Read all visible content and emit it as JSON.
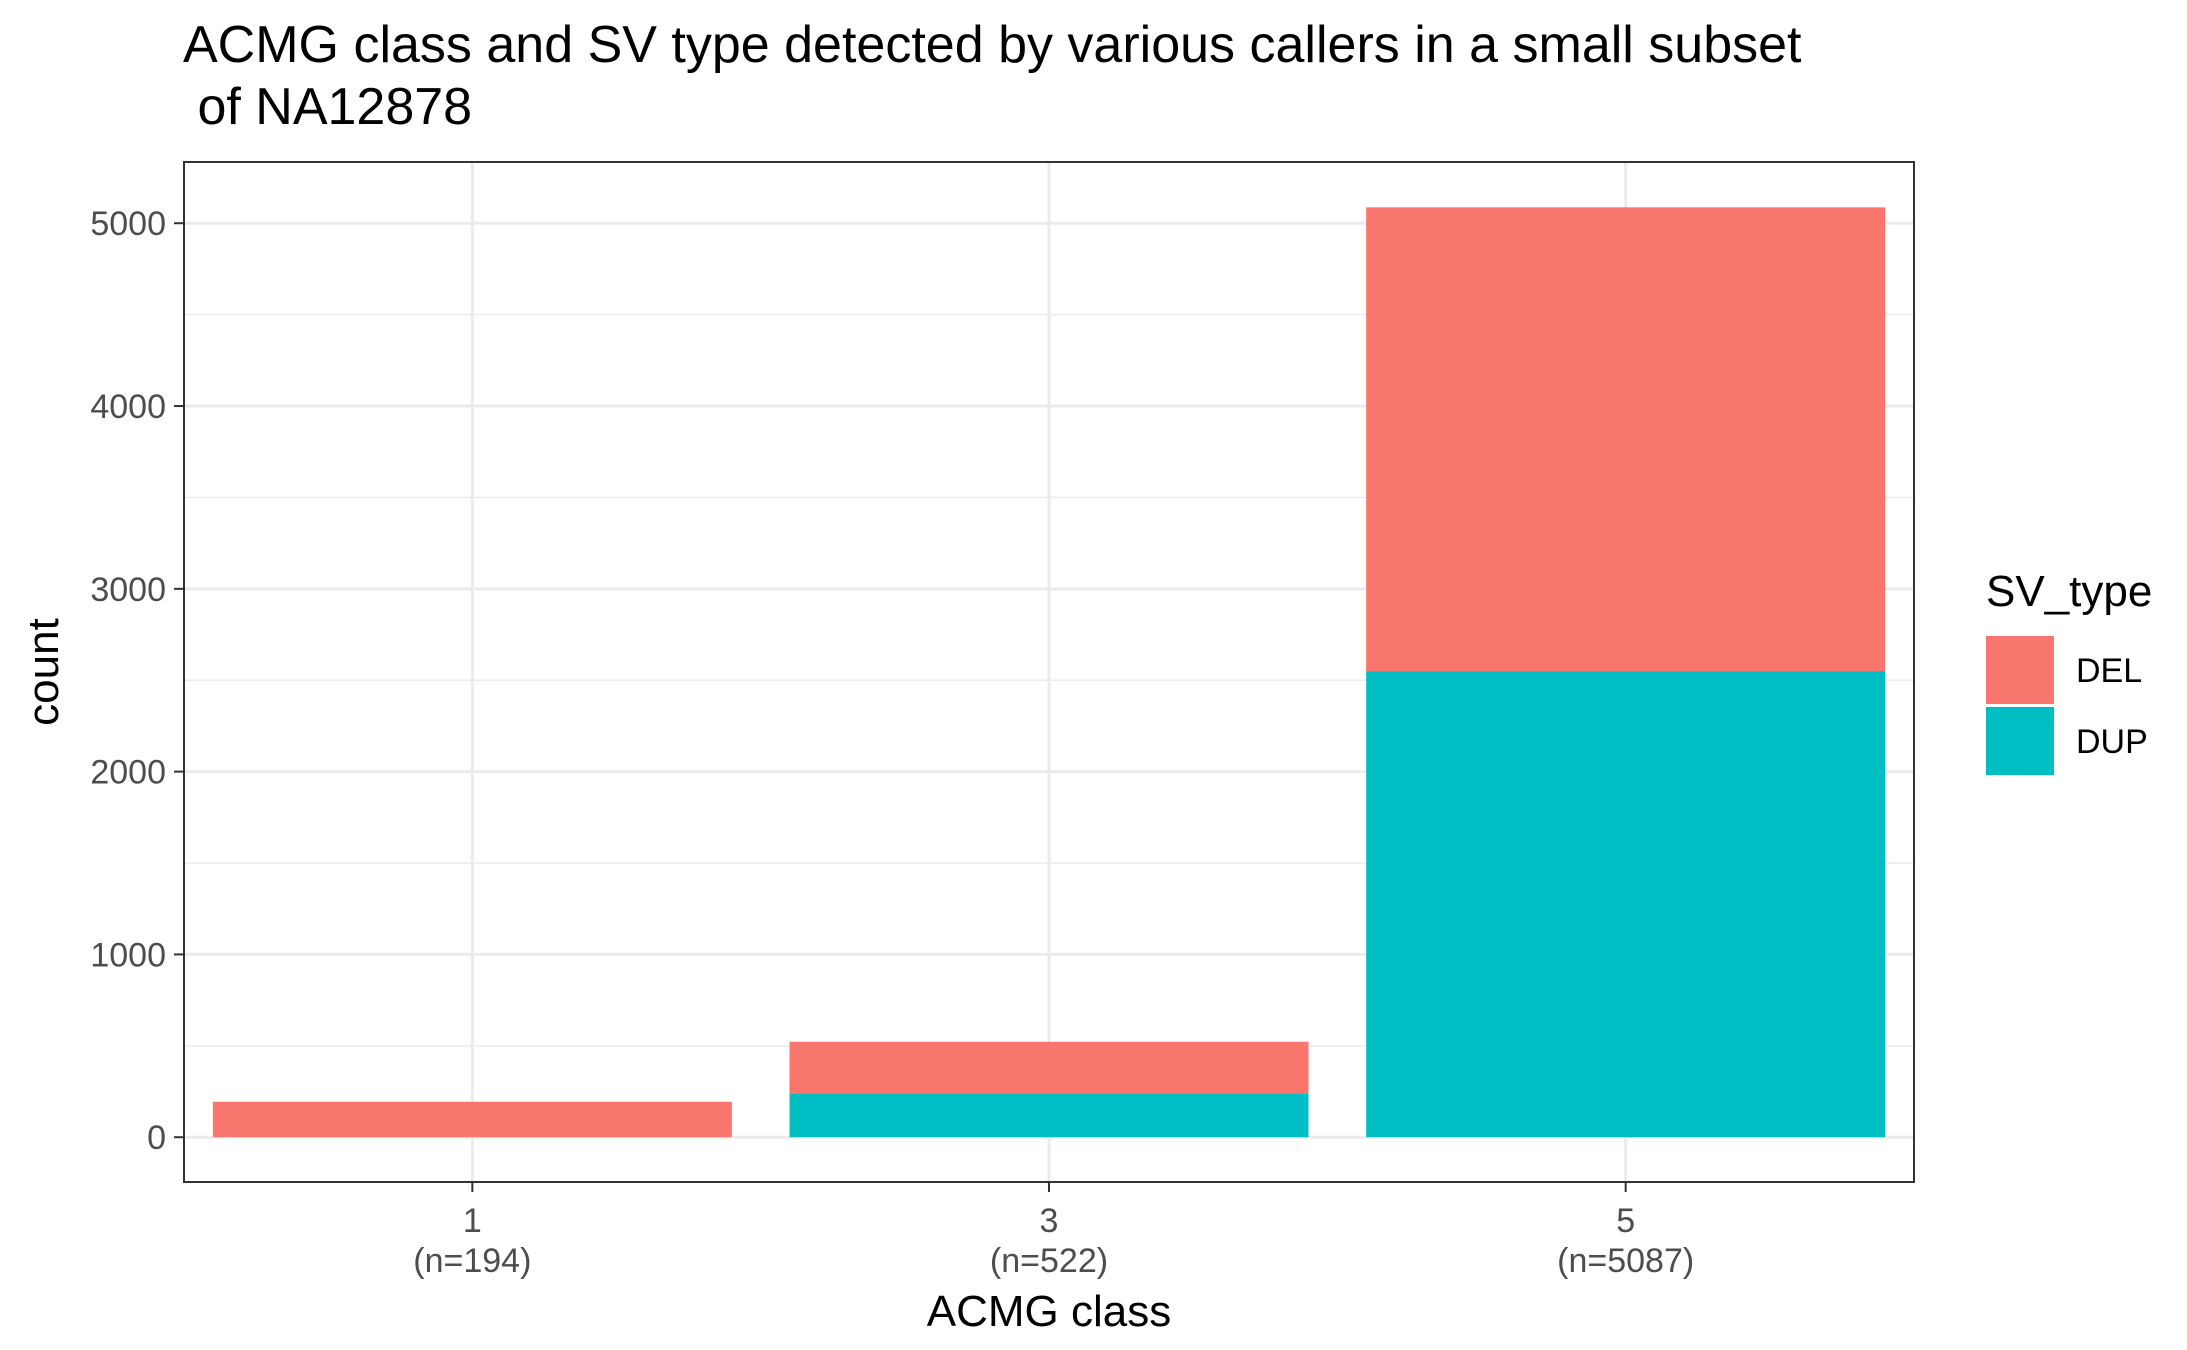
{
  "chart_data": {
    "type": "bar",
    "stacked": true,
    "title": "ACMG class and SV type detected by various callers in a small subset\n of NA12878",
    "title_lines": [
      "ACMG class and SV type detected by various callers in a small subset",
      " of NA12878"
    ],
    "xlabel": "ACMG class",
    "ylabel": "count",
    "categories": [
      "1",
      "3",
      "5"
    ],
    "category_sublabels": [
      "(n=194)",
      "(n=522)",
      "(n=5087)"
    ],
    "series": [
      {
        "name": "DUP",
        "color": "#00BFC4",
        "values": [
          0,
          240,
          2550
        ]
      },
      {
        "name": "DEL",
        "color": "#F8766D",
        "values": [
          194,
          282,
          2537
        ]
      }
    ],
    "ylim": [
      -245,
      5335
    ],
    "yticks": [
      0,
      1000,
      2000,
      3000,
      4000,
      5000
    ],
    "ytick_labels": [
      "0",
      "1000",
      "2000",
      "3000",
      "4000",
      "5000"
    ],
    "grid": true,
    "legend": {
      "title": "SV_type",
      "placement": "right",
      "entries": [
        {
          "label": "DEL",
          "color": "#F8766D"
        },
        {
          "label": "DUP",
          "color": "#00BFC4"
        }
      ]
    }
  }
}
